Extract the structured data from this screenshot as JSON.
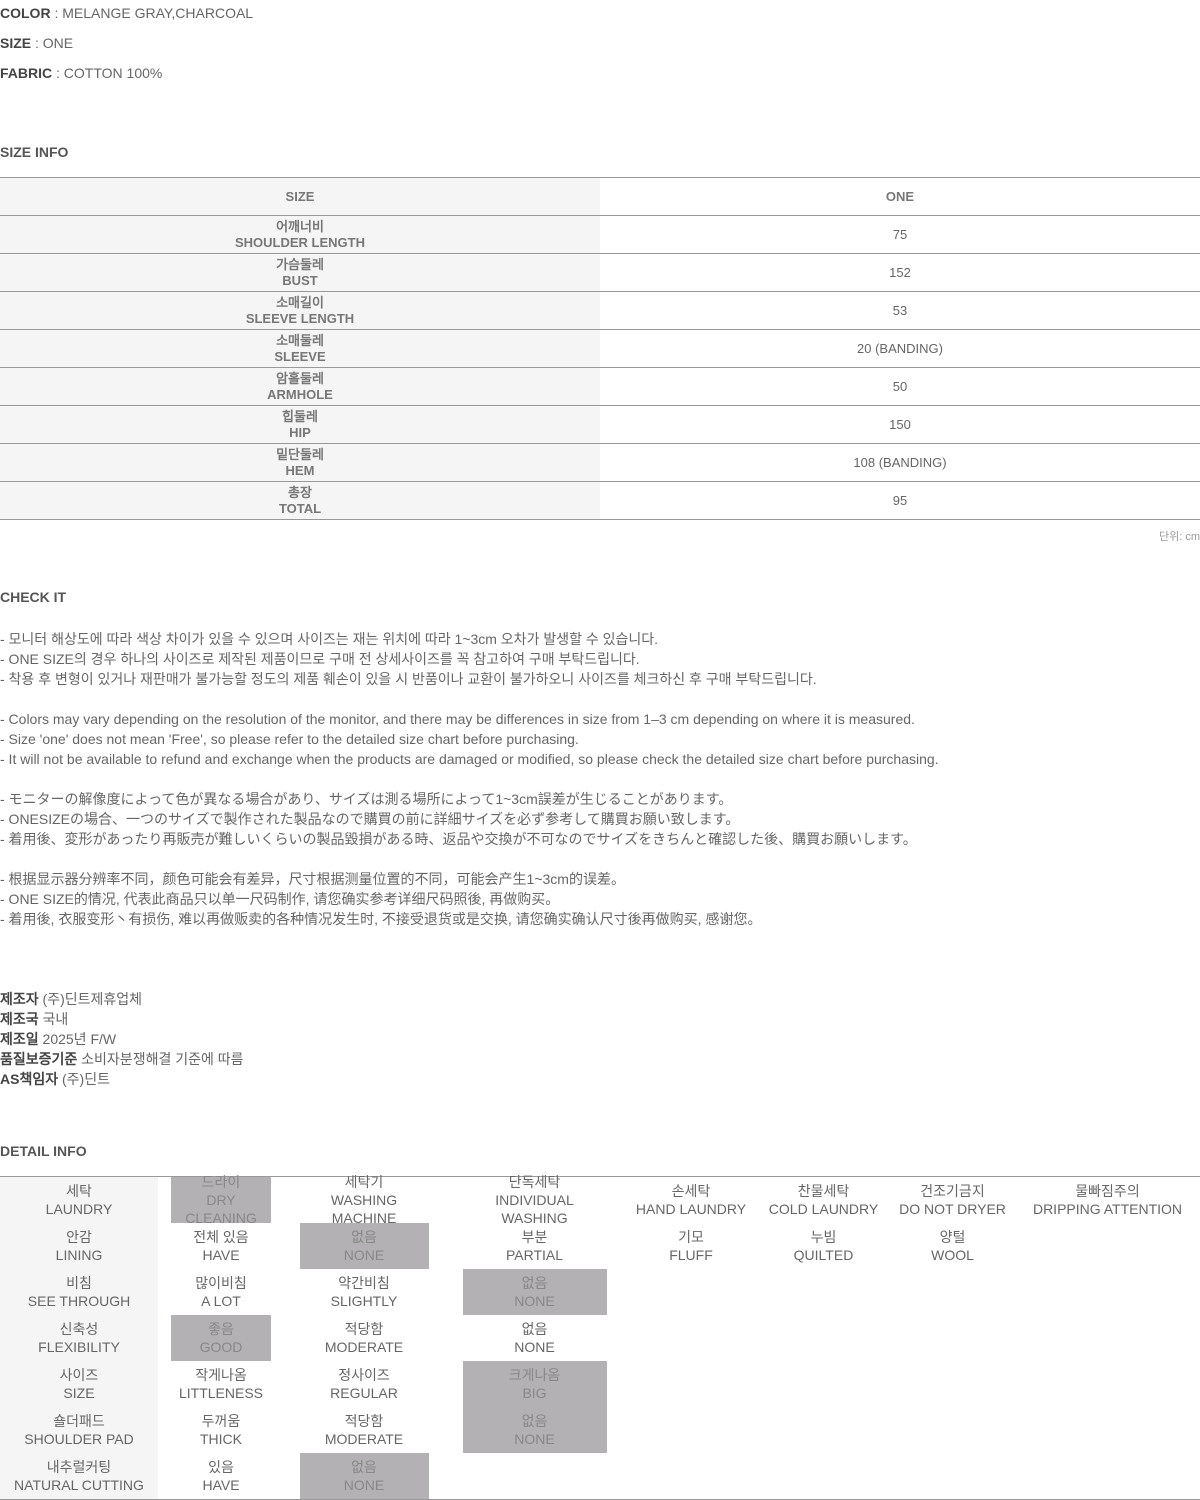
{
  "specs": [
    {
      "label": "COLOR",
      "value": " : MELANGE GRAY,CHARCOAL"
    },
    {
      "label": "SIZE",
      "value": " : ONE"
    },
    {
      "label": "FABRIC",
      "value": " : COTTON 100%"
    }
  ],
  "size_info": {
    "title": "SIZE INFO",
    "header": [
      "SIZE",
      "ONE"
    ],
    "rows": [
      {
        "ko": "어깨너비",
        "en": "SHOULDER LENGTH",
        "v": "75"
      },
      {
        "ko": "가슴둘레",
        "en": "BUST",
        "v": "152"
      },
      {
        "ko": "소매길이",
        "en": "SLEEVE LENGTH",
        "v": "53"
      },
      {
        "ko": "소매둘레",
        "en": "SLEEVE",
        "v": "20 (BANDING)"
      },
      {
        "ko": "암홀둘레",
        "en": "ARMHOLE",
        "v": "50"
      },
      {
        "ko": "힙둘레",
        "en": "HIP",
        "v": "150"
      },
      {
        "ko": "밑단둘레",
        "en": "HEM",
        "v": "108 (BANDING)"
      },
      {
        "ko": "총장",
        "en": "TOTAL",
        "v": "95"
      }
    ],
    "unit": "단위: cm"
  },
  "check": {
    "title": "CHECK IT",
    "lines": [
      "- 모니터 해상도에 따라 색상 차이가 있을 수 있으며 사이즈는 재는 위치에 따라 1~3cm 오차가 발생할 수 있습니다.",
      "- ONE SIZE의 경우 하나의 사이즈로 제작된 제품이므로 구매 전 상세사이즈를 꼭 참고하여 구매 부탁드립니다.",
      "- 착용 후 변형이 있거나 재판매가 불가능할 정도의 제품 훼손이 있을 시 반품이나 교환이 불가하오니 사이즈를 체크하신 후 구매 부탁드립니다.",
      "",
      "- Colors may vary depending on the resolution of the monitor, and there may be differences in size from 1–3 cm depending on where it is measured.",
      "- Size 'one' does not mean 'Free', so please refer to the detailed size chart before purchasing.",
      "- It will not be available to refund and exchange when the products are damaged or modified, so please check the detailed size chart before purchasing.",
      "",
      "- モニターの解像度によって色が異なる場合があり、サイズは測る場所によって1~3cm誤差が生じることがあります。",
      "- ONESIZEの場合、一つのサイズで製作された製品なので購買の前に詳細サイズを必ず参考して購買お願い致します。",
      "- 着用後、変形があったり再販売が難しいくらいの製品毀損がある時、返品や交換が不可なのでサイズをきちんと確認した後、購買お願いします。",
      "",
      "- 根据显示器分辨率不同，颜色可能会有差异，尺寸根据测量位置的不同，可能会产生1~3cm的误差。",
      "- ONE SIZE的情况, 代表此商品只以单一尺码制作, 请您确实参考详细尺码照後, 再做购买。",
      "- 着用後, 衣服变形丶有损伤, 难以再做贩卖的各种情况发生时, 不接受退货或是交换, 请您确实确认尺寸後再做购买, 感谢您。"
    ]
  },
  "maker": [
    {
      "label": "제조자",
      "value": " (주)딘트제휴업체"
    },
    {
      "label": "제조국",
      "value": " 국내"
    },
    {
      "label": "제조일",
      "value": " 2025년 F/W"
    },
    {
      "label": "품질보증기준",
      "value": " 소비자분쟁해결 기준에 따름"
    },
    {
      "label": "AS책임자",
      "value": " (주)딘트"
    }
  ],
  "detail": {
    "title": "DETAIL INFO",
    "rows": [
      {
        "label": [
          "세탁",
          "LAUNDRY"
        ],
        "cells": [
          {
            "t": [
              "드라이",
              "DRY CLEANING"
            ],
            "on": true
          },
          {
            "t": [
              "세탁기",
              "WASHING MACHINE"
            ]
          },
          {
            "t": [
              "단독세탁",
              "INDIVIDUAL WASHING"
            ]
          },
          {
            "t": [
              "손세탁",
              "HAND LAUNDRY"
            ]
          },
          {
            "t": [
              "찬물세탁",
              "COLD LAUNDRY"
            ]
          },
          {
            "t": [
              "건조기금지",
              "DO NOT DRYER"
            ]
          },
          {
            "t": [
              "물빠짐주의",
              "DRIPPING ATTENTION"
            ]
          }
        ]
      },
      {
        "label": [
          "안감",
          "LINING"
        ],
        "cells": [
          {
            "t": [
              "전체 있음",
              "HAVE"
            ]
          },
          {
            "t": [
              "없음",
              "NONE"
            ],
            "on": true
          },
          {
            "t": [
              "부분",
              "PARTIAL"
            ]
          },
          {
            "t": [
              "기모",
              "FLUFF"
            ]
          },
          {
            "t": [
              "누빔",
              "QUILTED"
            ]
          },
          {
            "t": [
              "양털",
              "WOOL"
            ]
          },
          {
            "t": [
              "",
              ""
            ]
          }
        ]
      },
      {
        "label": [
          "비침",
          "SEE THROUGH"
        ],
        "cells": [
          {
            "t": [
              "많이비침",
              "A LOT"
            ]
          },
          {
            "t": [
              "약간비침",
              "SLIGHTLY"
            ]
          },
          {
            "t": [
              "없음",
              "NONE"
            ],
            "on": true
          }
        ]
      },
      {
        "label": [
          "신축성",
          "FLEXIBILITY"
        ],
        "cells": [
          {
            "t": [
              "좋음",
              "GOOD"
            ],
            "on": true
          },
          {
            "t": [
              "적당함",
              "MODERATE"
            ]
          },
          {
            "t": [
              "없음",
              "NONE"
            ]
          }
        ]
      },
      {
        "label": [
          "사이즈",
          "SIZE"
        ],
        "cells": [
          {
            "t": [
              "작게나옴",
              "LITTLENESS"
            ]
          },
          {
            "t": [
              "정사이즈",
              "REGULAR"
            ]
          },
          {
            "t": [
              "크게나옴",
              "BIG"
            ],
            "on": true
          }
        ]
      },
      {
        "label": [
          "숄더패드",
          "SHOULDER PAD"
        ],
        "cells": [
          {
            "t": [
              "두꺼움",
              "THICK"
            ]
          },
          {
            "t": [
              "적당함",
              "MODERATE"
            ]
          },
          {
            "t": [
              "없음",
              "NONE"
            ],
            "on": true
          }
        ]
      },
      {
        "label": [
          "내추럴커팅",
          "NATURAL CUTTING"
        ],
        "cells": [
          {
            "t": [
              "있음",
              "HAVE"
            ]
          },
          {
            "t": [
              "없음",
              "NONE"
            ],
            "on": true
          }
        ]
      }
    ]
  }
}
